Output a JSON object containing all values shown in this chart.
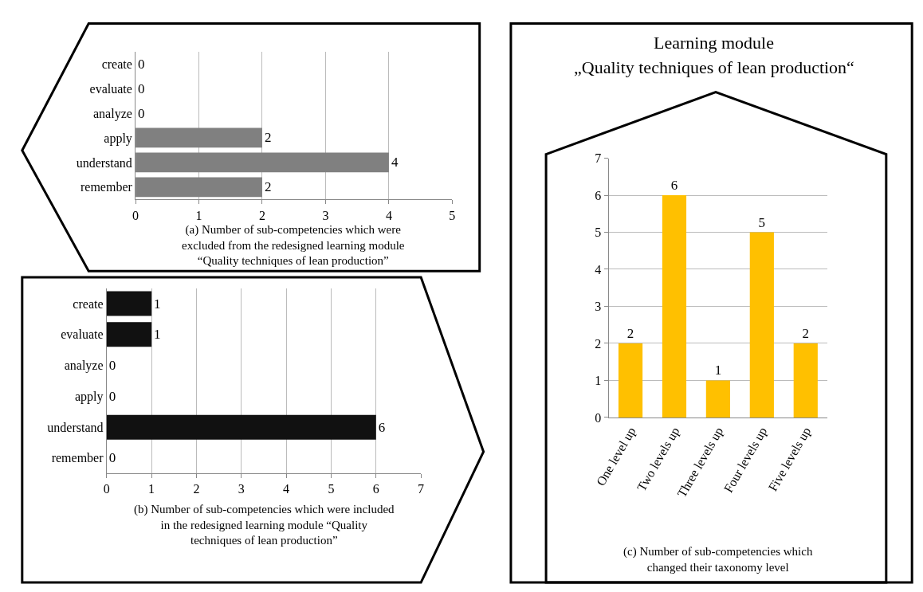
{
  "chart_data": [
    {
      "type": "bar",
      "orientation": "horizontal",
      "categories": [
        "create",
        "evaluate",
        "analyze",
        "apply",
        "understand",
        "remember"
      ],
      "values": [
        0,
        0,
        0,
        2,
        4,
        2
      ],
      "color": "#808080",
      "xlim": [
        0,
        5
      ],
      "xticks": [
        0,
        1,
        2,
        3,
        4,
        5
      ],
      "grid": "x",
      "data_labels": true,
      "annotations": [
        "(a) Number of sub-competencies which were excluded from the redesigned learning module “Quality techniques of lean production”"
      ]
    },
    {
      "type": "bar",
      "orientation": "horizontal",
      "categories": [
        "create",
        "evaluate",
        "analyze",
        "apply",
        "understand",
        "remember"
      ],
      "values": [
        1,
        1,
        0,
        0,
        6,
        0
      ],
      "color": "#111111",
      "xlim": [
        0,
        7
      ],
      "xticks": [
        0,
        1,
        2,
        3,
        4,
        5,
        6,
        7
      ],
      "grid": "x",
      "data_labels": true,
      "annotations": [
        "(b) Number of sub-competencies which were included in the redesigned learning module “Quality techniques of lean production”"
      ]
    },
    {
      "type": "bar",
      "title": "Learning module",
      "subtitle": "„Quality techniques of lean production“",
      "categories": [
        "One level up",
        "Two levels up",
        "Three levels up",
        "Four levels up",
        "Five levels up"
      ],
      "values": [
        2,
        6,
        1,
        5,
        2
      ],
      "color": "#ffc000",
      "ylim": [
        0,
        7
      ],
      "yticks": [
        0,
        1,
        2,
        3,
        4,
        5,
        6,
        7
      ],
      "grid": "y",
      "data_labels": true,
      "annotations": [
        "(c) Number of sub-competencies which changed their taxonomy level"
      ]
    }
  ]
}
